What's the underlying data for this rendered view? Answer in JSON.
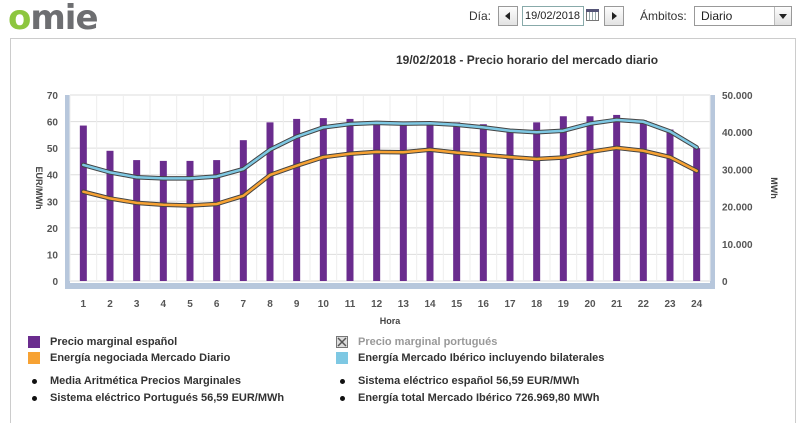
{
  "header": {
    "dia_label": "Día:",
    "date_value": "19/02/2018",
    "ambitos_label": "Ámbitos:",
    "ambitos_value": "Diario"
  },
  "logo": {
    "part1": "o",
    "part2": "mie"
  },
  "chart_data": {
    "type": "bar",
    "title": "19/02/2018 - Precio horario del mercado diario",
    "xlabel": "Hora",
    "ylabel": "EUR/MWh",
    "y2label": "MWh",
    "categories": [
      "1",
      "2",
      "3",
      "4",
      "5",
      "6",
      "7",
      "8",
      "9",
      "10",
      "11",
      "12",
      "13",
      "14",
      "15",
      "16",
      "17",
      "18",
      "19",
      "20",
      "21",
      "22",
      "23",
      "24"
    ],
    "ylim": [
      0,
      70
    ],
    "y2lim": [
      0,
      50000
    ],
    "yticks": [
      "0",
      "10",
      "20",
      "30",
      "40",
      "50",
      "60",
      "70"
    ],
    "y2ticks": [
      "0",
      "10.000",
      "20.000",
      "30.000",
      "40.000",
      "50.000"
    ],
    "grid": true,
    "series": [
      {
        "name": "Precio marginal español",
        "type": "bar",
        "axis": "left",
        "color": "#6a2c8e",
        "values": [
          58.5,
          49,
          45.5,
          45.2,
          45.2,
          45.5,
          53,
          59.7,
          61,
          61.3,
          61,
          60,
          59.7,
          60,
          59.7,
          59,
          57,
          59.7,
          62,
          62,
          62.5,
          60.5,
          57,
          50
        ]
      },
      {
        "name": "Energía negociada Mercado Diario",
        "type": "line",
        "axis": "right",
        "color": "#f7a233",
        "values": [
          24000,
          22200,
          21000,
          20500,
          20300,
          20700,
          22900,
          28500,
          31000,
          33300,
          34200,
          34700,
          34600,
          35300,
          34500,
          33900,
          33300,
          32800,
          33200,
          34700,
          35800,
          35000,
          33300,
          29600
        ]
      },
      {
        "name": "Energía Mercado Ibérico incluyendo bilaterales",
        "type": "line",
        "axis": "right",
        "color": "#7ec8e3",
        "values": [
          31200,
          29200,
          27900,
          27600,
          27600,
          28100,
          30100,
          35300,
          38800,
          41300,
          42200,
          42500,
          42300,
          42400,
          42000,
          41300,
          40400,
          40000,
          40400,
          42300,
          43300,
          42800,
          40200,
          35900
        ]
      }
    ],
    "legend": {
      "portugues_label": "Precio marginal portugués",
      "portugues_color": "#777777",
      "stats": [
        "Media Aritmética Precios Marginales",
        "Sistema eléctrico español  56,59 EUR/MWh",
        "Sistema eléctrico Portugués  56,59 EUR/MWh",
        "Energía total Mercado Ibérico  726.969,80 MWh"
      ]
    }
  }
}
